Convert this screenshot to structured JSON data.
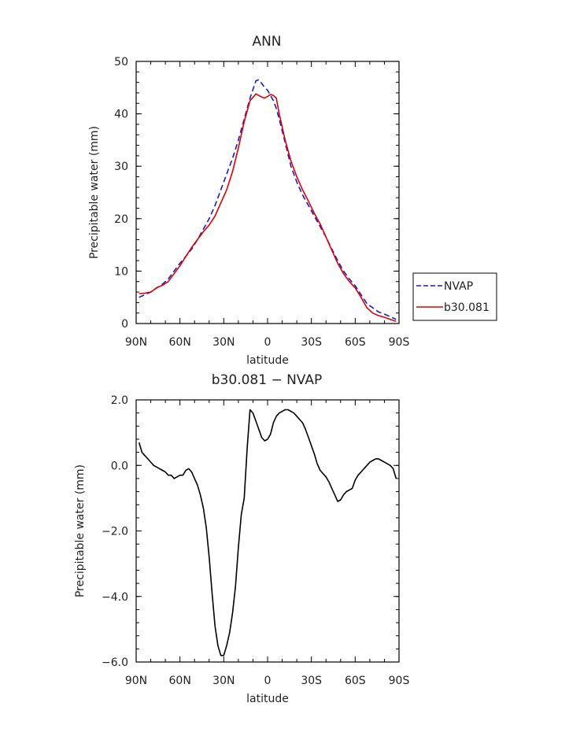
{
  "chart_data": [
    {
      "type": "line",
      "title": "ANN",
      "xlabel": "latitude",
      "ylabel": "Precipitable water (mm)",
      "xlim": [
        90,
        -90
      ],
      "ylim": [
        0,
        50
      ],
      "x_ticks": [
        90,
        60,
        30,
        0,
        -30,
        -60,
        -90
      ],
      "x_tick_labels": [
        "90N",
        "60N",
        "30N",
        "0",
        "30S",
        "60S",
        "90S"
      ],
      "y_ticks": [
        0,
        10,
        20,
        30,
        40,
        50
      ],
      "y_tick_labels": [
        "0",
        "10",
        "20",
        "30",
        "40",
        "50"
      ],
      "legend_position": "right",
      "series": [
        {
          "name": "NVAP",
          "color": "#1a1acc",
          "dash": "dashed",
          "x": [
            88,
            84,
            80,
            76,
            72,
            68,
            64,
            60,
            56,
            52,
            48,
            44,
            40,
            36,
            32,
            28,
            24,
            20,
            16,
            12,
            8,
            6,
            4,
            2,
            0,
            -2,
            -4,
            -6,
            -8,
            -12,
            -16,
            -20,
            -24,
            -28,
            -32,
            -36,
            -40,
            -44,
            -48,
            -52,
            -56,
            -60,
            -64,
            -68,
            -72,
            -76,
            -80,
            -84,
            -88
          ],
          "y": [
            5.0,
            5.5,
            6.0,
            6.8,
            7.5,
            8.5,
            10.0,
            11.5,
            12.8,
            14.2,
            16.0,
            18.0,
            20.0,
            22.5,
            25.5,
            28.5,
            31.5,
            35.0,
            39.0,
            43.0,
            46.3,
            46.5,
            45.8,
            45.0,
            44.5,
            43.5,
            42.5,
            41.0,
            39.0,
            34.5,
            30.0,
            27.0,
            24.5,
            22.5,
            20.5,
            18.5,
            16.5,
            14.2,
            12.0,
            10.0,
            8.5,
            7.2,
            5.5,
            3.8,
            3.0,
            2.2,
            1.8,
            1.3,
            0.8
          ]
        },
        {
          "name": "b30.081",
          "color": "#e00000",
          "dash": "solid",
          "x": [
            88,
            84,
            80,
            76,
            72,
            68,
            64,
            60,
            56,
            52,
            48,
            44,
            40,
            36,
            32,
            28,
            24,
            20,
            16,
            12,
            8,
            6,
            4,
            2,
            0,
            -2,
            -4,
            -6,
            -8,
            -12,
            -16,
            -20,
            -24,
            -28,
            -32,
            -36,
            -40,
            -44,
            -48,
            -52,
            -56,
            -60,
            -64,
            -68,
            -72,
            -76,
            -80,
            -84,
            -88
          ],
          "y": [
            5.7,
            5.8,
            6.0,
            6.8,
            7.3,
            8.0,
            9.5,
            11.0,
            12.8,
            14.5,
            16.0,
            17.5,
            18.8,
            20.5,
            23.0,
            25.5,
            29.0,
            33.5,
            38.5,
            42.5,
            43.8,
            43.5,
            43.2,
            43.0,
            43.3,
            43.7,
            43.5,
            43.0,
            40.0,
            35.0,
            31.0,
            28.0,
            25.5,
            23.3,
            21.0,
            19.0,
            16.5,
            14.0,
            11.5,
            9.5,
            8.0,
            6.8,
            5.0,
            3.0,
            2.0,
            1.5,
            1.2,
            0.8,
            0.4
          ]
        }
      ]
    },
    {
      "type": "line",
      "title": "b30.081 − NVAP",
      "xlabel": "latitude",
      "ylabel": "Precipitable water (mm)",
      "xlim": [
        90,
        -90
      ],
      "ylim": [
        -6.0,
        2.0
      ],
      "x_ticks": [
        90,
        60,
        30,
        0,
        -30,
        -60,
        -90
      ],
      "x_tick_labels": [
        "90N",
        "60N",
        "30N",
        "0",
        "30S",
        "60S",
        "90S"
      ],
      "y_ticks": [
        -6,
        -4,
        -2,
        0,
        2
      ],
      "y_tick_labels": [
        "−6.0",
        "−4.0",
        "−2.0",
        "0.0",
        "2.0"
      ],
      "series": [
        {
          "color": "#000000",
          "dash": "solid",
          "x": [
            88,
            86,
            84,
            82,
            80,
            78,
            76,
            74,
            72,
            70,
            68,
            66,
            64,
            62,
            60,
            58,
            56,
            54,
            52,
            50,
            48,
            46,
            44,
            42,
            40,
            38,
            36,
            34,
            32,
            30,
            28,
            26,
            24,
            22,
            20,
            18,
            16,
            14,
            12,
            10,
            8,
            6,
            4,
            2,
            0,
            -2,
            -4,
            -6,
            -8,
            -10,
            -12,
            -14,
            -16,
            -18,
            -20,
            -22,
            -24,
            -26,
            -28,
            -30,
            -32,
            -34,
            -36,
            -38,
            -40,
            -42,
            -44,
            -46,
            -48,
            -50,
            -52,
            -54,
            -56,
            -58,
            -60,
            -62,
            -64,
            -66,
            -68,
            -70,
            -72,
            -74,
            -76,
            -78,
            -80,
            -82,
            -84,
            -86,
            -88
          ],
          "y": [
            0.7,
            0.4,
            0.3,
            0.2,
            0.1,
            0.0,
            -0.05,
            -0.1,
            -0.15,
            -0.2,
            -0.3,
            -0.3,
            -0.4,
            -0.35,
            -0.3,
            -0.3,
            -0.15,
            -0.1,
            -0.2,
            -0.4,
            -0.6,
            -0.9,
            -1.3,
            -1.9,
            -2.8,
            -3.9,
            -4.9,
            -5.5,
            -5.8,
            -5.8,
            -5.5,
            -5.1,
            -4.5,
            -3.7,
            -2.5,
            -1.5,
            -1.0,
            0.5,
            1.7,
            1.6,
            1.35,
            1.1,
            0.85,
            0.75,
            0.8,
            0.95,
            1.3,
            1.5,
            1.6,
            1.65,
            1.7,
            1.7,
            1.65,
            1.6,
            1.5,
            1.4,
            1.3,
            1.1,
            0.85,
            0.6,
            0.35,
            0.05,
            -0.15,
            -0.25,
            -0.35,
            -0.5,
            -0.7,
            -0.9,
            -1.1,
            -1.05,
            -0.9,
            -0.8,
            -0.75,
            -0.7,
            -0.45,
            -0.3,
            -0.2,
            -0.1,
            0.0,
            0.1,
            0.15,
            0.2,
            0.2,
            0.15,
            0.1,
            0.05,
            0.0,
            -0.1,
            -0.4
          ]
        }
      ]
    }
  ]
}
